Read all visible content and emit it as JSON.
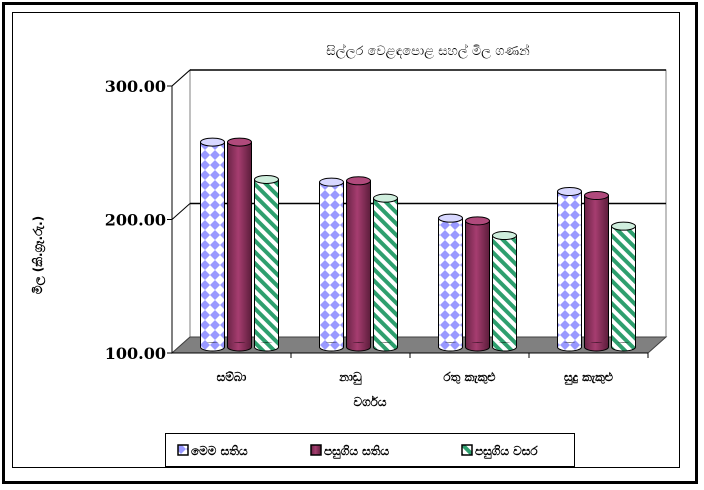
{
  "chart_data": {
    "type": "bar",
    "title": "සිල්ලර වෙළඳපොළ සහල් මිල ගණන්",
    "xlabel": "වර්ගය",
    "ylabel": "මිල (කි.ග්‍රෑ.රු.)",
    "ylim": [
      100,
      300
    ],
    "yticks": [
      "100.00",
      "200.00",
      "300.00"
    ],
    "grid": true,
    "legend_position": "bottom",
    "categories": [
      "සම්බා",
      "නාඩු",
      "රතු කැකුළු",
      "සුදු කැකුළු"
    ],
    "series": [
      {
        "name": "මෙම සතිය",
        "values": [
          255,
          225,
          198,
          218
        ],
        "color": "#9999ff",
        "pattern": "diamond"
      },
      {
        "name": "පසුගිය සතිය",
        "values": [
          255,
          226,
          196,
          215
        ],
        "color": "#993366",
        "pattern": "solid"
      },
      {
        "name": "පසුගිය වසර",
        "values": [
          227,
          213,
          185,
          192
        ],
        "color": "#2e9f6e",
        "pattern": "diagonal"
      }
    ]
  }
}
